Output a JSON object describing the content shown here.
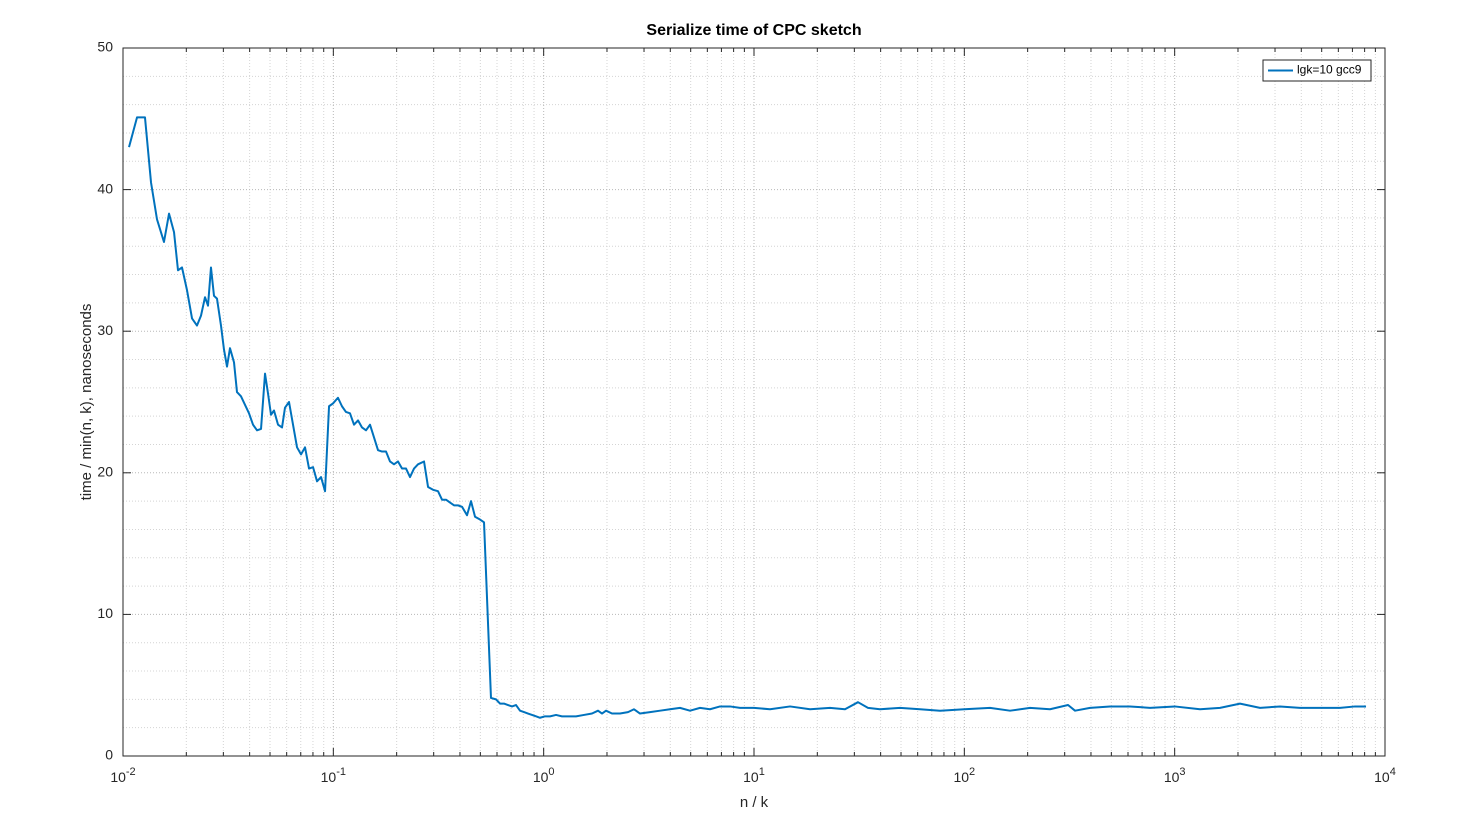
{
  "chart_data": {
    "type": "line",
    "title": "Serialize time of CPC sketch",
    "xlabel": "n / k",
    "ylabel": "time / min(n, k), nanoseconds",
    "xscale": "log",
    "grid": true,
    "minor_grid": true,
    "legend_position": "northeast",
    "xlim": [
      0.01,
      10000
    ],
    "ylim": [
      0,
      50
    ],
    "xticks": [
      {
        "value": 0.01,
        "label": "10",
        "exponent": "-2"
      },
      {
        "value": 0.1,
        "label": "10",
        "exponent": "-1"
      },
      {
        "value": 1,
        "label": "10",
        "exponent": "0"
      },
      {
        "value": 10,
        "label": "10",
        "exponent": "1"
      },
      {
        "value": 100,
        "label": "10",
        "exponent": "2"
      },
      {
        "value": 1000,
        "label": "10",
        "exponent": "3"
      },
      {
        "value": 10000,
        "label": "10",
        "exponent": "4"
      }
    ],
    "xminorticks": [
      0.02,
      0.03,
      0.04,
      0.05,
      0.06,
      0.07,
      0.08,
      0.09,
      0.2,
      0.3,
      0.4,
      0.5,
      0.6,
      0.7,
      0.8,
      0.9,
      2,
      3,
      4,
      5,
      6,
      7,
      8,
      9,
      20,
      30,
      40,
      50,
      60,
      70,
      80,
      90,
      200,
      300,
      400,
      500,
      600,
      700,
      800,
      900,
      2000,
      3000,
      4000,
      5000,
      6000,
      7000,
      8000,
      9000
    ],
    "yticks": [
      0,
      10,
      20,
      30,
      40,
      50
    ],
    "yminorticks": [
      2,
      4,
      6,
      8,
      12,
      14,
      16,
      18,
      22,
      24,
      26,
      28,
      32,
      34,
      36,
      38,
      42,
      44,
      46,
      48
    ],
    "x": [
      0.01068,
      0.01166,
      0.01272,
      0.01359,
      0.01451,
      0.01566,
      0.01655,
      0.01748,
      0.01826,
      0.01908,
      0.02015,
      0.02129,
      0.02248,
      0.02349,
      0.02454,
      0.02536,
      0.0262,
      0.02708,
      0.02798,
      0.02923,
      0.03021,
      0.03122,
      0.03226,
      0.03371,
      0.03483,
      0.03639,
      0.03802,
      0.03973,
      0.04151,
      0.04337,
      0.04531,
      0.04734,
      0.04892,
      0.05054,
      0.05223,
      0.05457,
      0.05702,
      0.05892,
      0.06156,
      0.06432,
      0.0672,
      0.07021,
      0.07335,
      0.07664,
      0.08007,
      0.08366,
      0.08741,
      0.09132,
      0.09541,
      0.09963,
      0.1052,
      0.1099,
      0.1148,
      0.12,
      0.1254,
      0.131,
      0.1369,
      0.143,
      0.1494,
      0.1561,
      0.1631,
      0.1704,
      0.178,
      0.186,
      0.1943,
      0.203,
      0.2121,
      0.2216,
      0.2315,
      0.2419,
      0.2527,
      0.2699,
      0.282,
      0.2979,
      0.3145,
      0.3287,
      0.3434,
      0.3588,
      0.3748,
      0.3916,
      0.4092,
      0.4321,
      0.4514,
      0.4717,
      0.4982,
      0.5205,
      0.5617,
      0.5934,
      0.62,
      0.6477,
      0.6768,
      0.7071,
      0.7388,
      0.7719,
      0.8064,
      0.8425,
      0.8803,
      0.9196,
      0.9608,
      1.015,
      1.072,
      1.145,
      1.222,
      1.306,
      1.425,
      1.555,
      1.698,
      1.813,
      1.894,
      1.979,
      2.113,
      2.307,
      2.518,
      2.688,
      2.871,
      3.203,
      3.574,
      3.988,
      4.448,
      4.963,
      5.537,
      6.178,
      6.892,
      7.691,
      8.581,
      10.0,
      11.92,
      14.84,
      18.47,
      22.98,
      27.08,
      31.22,
      34.83,
      39.72,
      49.45,
      61.55,
      76.62,
      100,
      132.5,
      164.9,
      205.3,
      255.5,
      311.2,
      336.0,
      395.9,
      492.8,
      613.4,
      763.6,
      1000,
      1320,
      1643,
      2045,
      2546,
      3169,
      3945,
      4910,
      6112,
      7203,
      8124
    ],
    "series": [
      {
        "name": "lgk=10 gcc9",
        "color": "#0072bd",
        "values": [
          43.0,
          45.1,
          45.1,
          40.5,
          37.9,
          36.3,
          38.3,
          37.0,
          34.3,
          34.5,
          32.9,
          30.9,
          30.4,
          31.1,
          32.4,
          31.8,
          34.5,
          32.5,
          32.3,
          30.4,
          28.7,
          27.5,
          28.8,
          27.8,
          25.7,
          25.4,
          24.8,
          24.2,
          23.4,
          23.0,
          23.1,
          27.0,
          25.6,
          24.1,
          24.4,
          23.4,
          23.2,
          24.6,
          25.0,
          23.4,
          21.8,
          21.3,
          21.8,
          20.3,
          20.4,
          19.4,
          19.7,
          18.7,
          24.7,
          24.9,
          25.3,
          24.7,
          24.3,
          24.2,
          23.4,
          23.7,
          23.2,
          23.0,
          23.4,
          22.5,
          21.6,
          21.5,
          21.5,
          20.8,
          20.6,
          20.8,
          20.3,
          20.3,
          19.7,
          20.3,
          20.6,
          20.8,
          19.0,
          18.8,
          18.7,
          18.1,
          18.1,
          17.9,
          17.7,
          17.7,
          17.6,
          17.0,
          18.0,
          16.9,
          16.7,
          16.5,
          4.1,
          4.0,
          3.7,
          3.7,
          3.6,
          3.5,
          3.6,
          3.2,
          3.1,
          3.0,
          2.9,
          2.8,
          2.7,
          2.8,
          2.8,
          2.9,
          2.8,
          2.8,
          2.8,
          2.9,
          3.0,
          3.2,
          3.0,
          3.2,
          3.0,
          3.0,
          3.1,
          3.3,
          3.0,
          3.1,
          3.2,
          3.3,
          3.4,
          3.2,
          3.4,
          3.3,
          3.5,
          3.5,
          3.4,
          3.4,
          3.3,
          3.5,
          3.3,
          3.4,
          3.3,
          3.8,
          3.4,
          3.3,
          3.4,
          3.3,
          3.2,
          3.3,
          3.4,
          3.2,
          3.4,
          3.3,
          3.6,
          3.2,
          3.4,
          3.5,
          3.5,
          3.4,
          3.5,
          3.3,
          3.4,
          3.7,
          3.4,
          3.5,
          3.4,
          3.4,
          3.4,
          3.5,
          3.5
        ]
      }
    ]
  }
}
